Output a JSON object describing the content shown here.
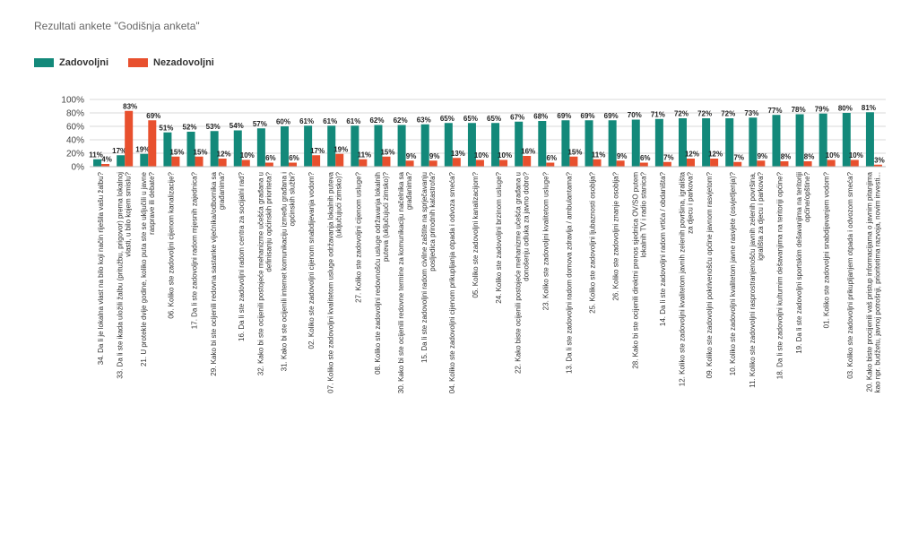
{
  "title": "Rezultati ankete \"Godišnja anketa\"",
  "colors": {
    "zadovoljni": "#13897a",
    "nezadovoljni": "#e8502e",
    "grid": "#d9d9d9"
  },
  "chart_data": {
    "type": "bar",
    "title": "Rezultati ankete \"Godišnja anketa\"",
    "ylim": [
      0,
      100
    ],
    "y_ticks": [
      "0%",
      "20%",
      "40%",
      "60%",
      "80%",
      "100%"
    ],
    "grid": true,
    "legend_position": "top-left",
    "series": [
      {
        "name": "Zadovoljni",
        "values": [
          11,
          17,
          19,
          51,
          52,
          53,
          54,
          57,
          60,
          61,
          61,
          61,
          62,
          62,
          63,
          65,
          65,
          65,
          67,
          68,
          69,
          69,
          69,
          70,
          71,
          72,
          72,
          72,
          73,
          77,
          78,
          79,
          80,
          81
        ]
      },
      {
        "name": "Nezadovoljni",
        "values": [
          4,
          83,
          69,
          15,
          15,
          12,
          10,
          6,
          6,
          17,
          19,
          11,
          15,
          9,
          9,
          13,
          10,
          10,
          16,
          6,
          15,
          11,
          9,
          6,
          7,
          12,
          12,
          7,
          9,
          8,
          8,
          10,
          10,
          3
        ]
      }
    ],
    "categories": [
      [
        "34. Da li je lokalna vlast na bilo koji način riješila vašu žalbu?"
      ],
      [
        "33. Da li ste ikada uložili žalbu (pritužbu, prigovor) prema lokalnoj",
        "vlasti, u bilo kojem smislu?"
      ],
      [
        "21. U protekle dvije godine, koliko puta ste se uključili u javne",
        "rasprave ili debate?"
      ],
      [
        "06. Koliko ste zadovoljni cijenom kanalizacije?"
      ],
      [
        "17. Da li ste zadovoljni radom mjesnih zajednica?"
      ],
      [
        "29. Kako bi ste ocijenili redovna sastanke vijećnika/odbornika sa",
        "građanima?"
      ],
      [
        "16. Da li ste zadovoljni radom centra za socijalni rad?"
      ],
      [
        "32. Kako bi ste ocijenili postojeće mehanizme učešća građana u",
        "definisanju općinskih prioriteta?"
      ],
      [
        "31. Kako bi ste ocijenili internet komunikaciju između građana i",
        "općinskih službi?"
      ],
      [
        "02. Koliko ste zadovoljni cijenom snabdijevanja vodom?"
      ],
      [
        "07. Koliko ste zadovoljni kvalitetom usluge održavanja lokalnih puteva",
        "(uključujući zimsko)?"
      ],
      [
        "27. Koliko ste zadovoljni cijenom usluge?"
      ],
      [
        "08. Koliko ste zadovoljni redovnošću usluge održavanja lokalnih",
        "puteva (uključujući zimsko)?"
      ],
      [
        "30. Kako bi ste ocijenili redovne termine za komunikaciju načelnika sa",
        "građanima?"
      ],
      [
        "15. Da li ste zadovoljni radom civilne zaštite na sprječavanju",
        "posljedica prirodnih katastrofa?"
      ],
      [
        "04. Koliko ste zadovoljni cijenom prikupljanja otpada i odvoza smeća?"
      ],
      [
        "05. Koliko ste zadovoljni kanalizacijom?"
      ],
      [
        "24. Koliko ste zadovoljni brzinom usluge?"
      ],
      [
        "22. Kako biste ocijenili postojeće mehanizme učešća građana u",
        "donošenju odluka za javno dobro?"
      ],
      [
        "23. Koliko ste zadovoljni kvalitetom usluge?"
      ],
      [
        "13. Da li ste zadovoljni radom domova zdravlja / ambulantama?"
      ],
      [
        "25. Koliko ste zadovoljni ljubaznosti osoblja?"
      ],
      [
        "26. Koliko ste zadovoljni znanje osoblja?"
      ],
      [
        "28. Kako bi ste ocijenili direktni prenos sjednica OV/SO putem",
        "lokalnih TV i radio stanica?"
      ],
      [
        "14. Da li ste zadovoljni radom vrtića / obdaništa?"
      ],
      [
        "12. Koliko ste zadovoljni kvalitetom javnih zelenih površina, igrališta",
        "za djecu i parkova?"
      ],
      [
        "09. Koliko ste zadovoljni pokrivenošću općine javnom rasvjetom?"
      ],
      [
        "10. Koliko ste zadovoljni kvalitetom javne rasvjete (osvjetljenja)?"
      ],
      [
        "11. Koliko ste zadovoljni rasprostranjenošću javnih zelenih površina,",
        "igrališta za djecu i parkova?"
      ],
      [
        "18. Da li ste zadovoljni kulturnim dešavanjima na teritoriji općine?"
      ],
      [
        "19. Da li ste zadovoljni sportskim dešavanjima na teritoriji",
        "općine/opštine?"
      ],
      [
        "01. Koliko ste zadovoljni snabdijevanjem vodom?"
      ],
      [
        "03. Koliko ste zadovoljni prikupljanjem otpada i odvozom smeća?"
      ],
      [
        "20. Kako biste procijenili vaš pristup informacijama o javnim pitanjima",
        "kao npr. budžetu, javnoj potrošnji, prioritetima razvoja, novim investi..."
      ]
    ]
  }
}
